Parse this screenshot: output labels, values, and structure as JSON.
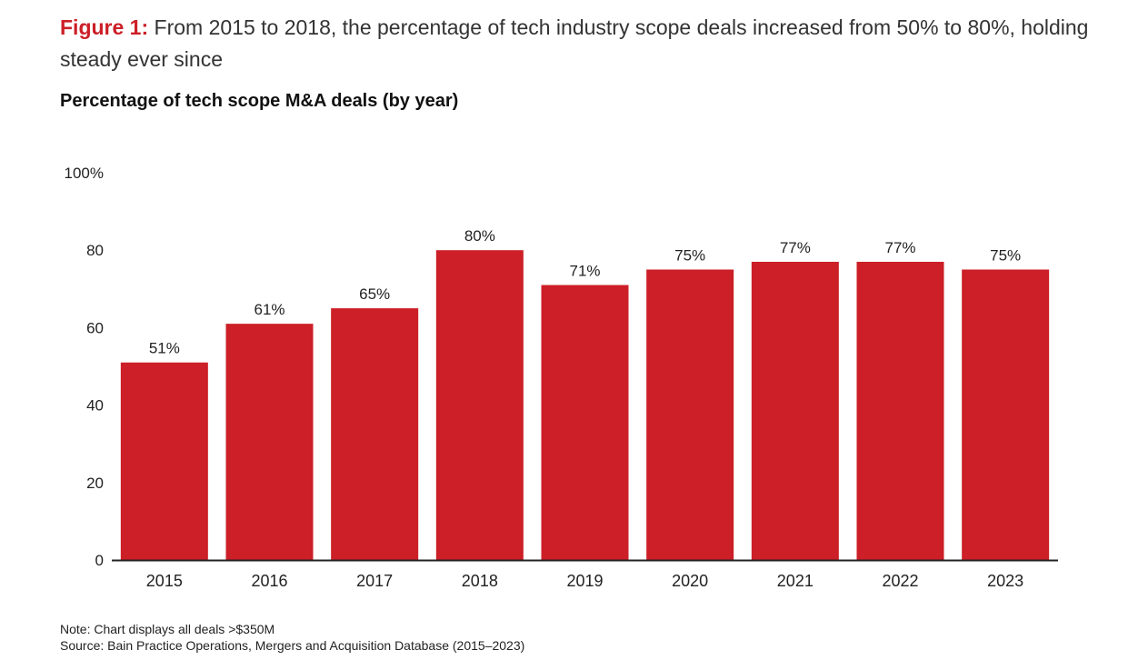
{
  "figure": {
    "label": "Figure 1:",
    "caption": "From 2015 to 2018, the percentage of tech industry scope deals increased from 50% to 80%, holding steady ever since"
  },
  "colors": {
    "accent": "#cc1f27",
    "bar": "#cc1f27",
    "axis": "#222222",
    "text": "#222222"
  },
  "chart_data": {
    "type": "bar",
    "title": "Percentage of tech scope M&A deals (by year)",
    "xlabel": "",
    "ylabel": "",
    "categories": [
      "2015",
      "2016",
      "2017",
      "2018",
      "2019",
      "2020",
      "2021",
      "2022",
      "2023"
    ],
    "values": [
      51,
      61,
      65,
      80,
      71,
      75,
      77,
      77,
      75
    ],
    "data_labels": [
      "51%",
      "61%",
      "65%",
      "80%",
      "71%",
      "75%",
      "77%",
      "77%",
      "75%"
    ],
    "ylim": [
      0,
      100
    ],
    "yticks": [
      0,
      20,
      40,
      60,
      80,
      100
    ],
    "ytick_labels": [
      "0",
      "20",
      "40",
      "60",
      "80",
      "100%"
    ],
    "grid": false,
    "legend": "none"
  },
  "notes": {
    "note": "Note: Chart displays all deals >$350M",
    "source": "Source: Bain Practice Operations, Mergers and Acquisition Database (2015–2023)"
  }
}
